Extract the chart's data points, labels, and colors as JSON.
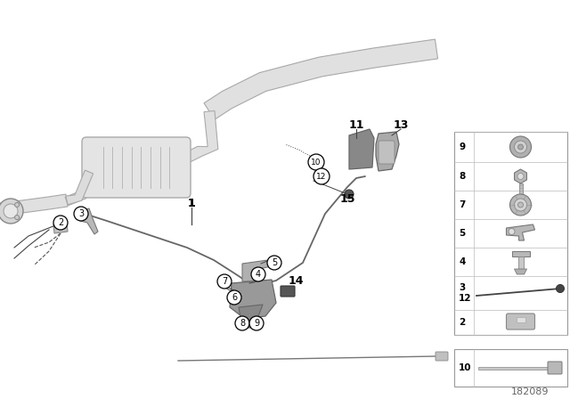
{
  "background_color": "#ffffff",
  "diagram_number": "182089",
  "pipe_fill": "#e8e8e8",
  "pipe_edge": "#aaaaaa",
  "part_fill": "#b0b0b0",
  "part_edge": "#666666",
  "label_bg": "#ffffff",
  "label_edge": "#000000",
  "line_color": "#555555",
  "panel_edge": "#aaaaaa"
}
